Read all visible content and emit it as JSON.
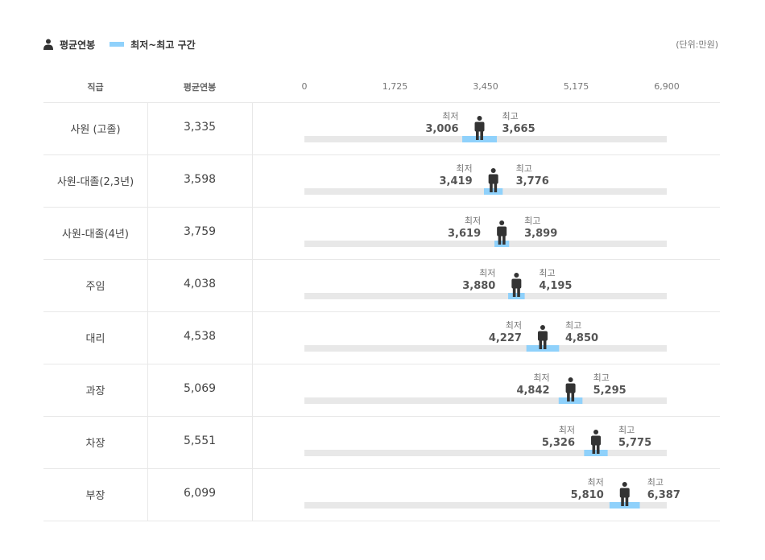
{
  "legend": {
    "avg_label": "평균연봉",
    "range_label": "최저~최고 구간"
  },
  "unit_label": "(단위:만원)",
  "headers": {
    "position": "직급",
    "average": "평균연봉"
  },
  "colors": {
    "track": "#e8e8e8",
    "range": "#8fd1fb",
    "person": "#333333"
  },
  "chart_data": {
    "type": "range-bar",
    "xlim": [
      0,
      6900
    ],
    "ticks": [
      "0",
      "1,725",
      "3,450",
      "5,175",
      "6,900"
    ],
    "tick_values": [
      0,
      1725,
      3450,
      5175,
      6900
    ],
    "min_label": "최저",
    "max_label": "최고",
    "rows": [
      {
        "category": "사원 (고졸)",
        "avg": 3335,
        "avg_label": "3,335",
        "min": 3006,
        "min_label": "3,006",
        "max": 3665,
        "max_label": "3,665"
      },
      {
        "category": "사원-대졸(2,3년)",
        "avg": 3598,
        "avg_label": "3,598",
        "min": 3419,
        "min_label": "3,419",
        "max": 3776,
        "max_label": "3,776"
      },
      {
        "category": "사원-대졸(4년)",
        "avg": 3759,
        "avg_label": "3,759",
        "min": 3619,
        "min_label": "3,619",
        "max": 3899,
        "max_label": "3,899"
      },
      {
        "category": "주임",
        "avg": 4038,
        "avg_label": "4,038",
        "min": 3880,
        "min_label": "3,880",
        "max": 4195,
        "max_label": "4,195"
      },
      {
        "category": "대리",
        "avg": 4538,
        "avg_label": "4,538",
        "min": 4227,
        "min_label": "4,227",
        "max": 4850,
        "max_label": "4,850"
      },
      {
        "category": "과장",
        "avg": 5069,
        "avg_label": "5,069",
        "min": 4842,
        "min_label": "4,842",
        "max": 5295,
        "max_label": "5,295"
      },
      {
        "category": "차장",
        "avg": 5551,
        "avg_label": "5,551",
        "min": 5326,
        "min_label": "5,326",
        "max": 5775,
        "max_label": "5,775"
      },
      {
        "category": "부장",
        "avg": 6099,
        "avg_label": "6,099",
        "min": 5810,
        "min_label": "5,810",
        "max": 6387,
        "max_label": "6,387"
      }
    ]
  }
}
